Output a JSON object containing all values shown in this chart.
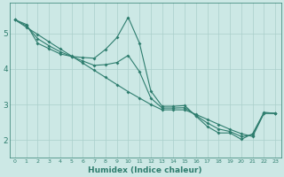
{
  "xlabel": "Humidex (Indice chaleur)",
  "background_color": "#cce8e5",
  "line_color": "#2e7d6e",
  "grid_color": "#aacfcb",
  "xlim": [
    -0.5,
    23.5
  ],
  "ylim": [
    1.5,
    5.85
  ],
  "yticks": [
    2,
    3,
    4,
    5
  ],
  "xticks": [
    0,
    1,
    2,
    3,
    4,
    5,
    6,
    7,
    8,
    9,
    10,
    11,
    12,
    13,
    14,
    15,
    16,
    17,
    18,
    19,
    20,
    21,
    22,
    23
  ],
  "line1_x": [
    0,
    1,
    2,
    3,
    4,
    5,
    6,
    7,
    8,
    9,
    10,
    11,
    12,
    13,
    14,
    15,
    16,
    17,
    18,
    19,
    20,
    21,
    22,
    23
  ],
  "line1_y": [
    5.38,
    5.25,
    4.72,
    4.57,
    4.42,
    4.35,
    4.32,
    4.3,
    4.55,
    4.88,
    5.45,
    4.72,
    3.38,
    2.95,
    2.95,
    2.97,
    2.67,
    2.38,
    2.2,
    2.2,
    2.02,
    2.18,
    2.78,
    2.75
  ],
  "line2_x": [
    0,
    1,
    2,
    3,
    4,
    5,
    6,
    7,
    8,
    9,
    10,
    11,
    12,
    13,
    14,
    15,
    16,
    17,
    18,
    19,
    20,
    21,
    22,
    23
  ],
  "line2_y": [
    5.38,
    5.17,
    4.97,
    4.76,
    4.56,
    4.36,
    4.16,
    3.96,
    3.76,
    3.56,
    3.36,
    3.18,
    3.0,
    2.85,
    2.85,
    2.85,
    2.72,
    2.58,
    2.44,
    2.3,
    2.18,
    2.1,
    2.75,
    2.75
  ],
  "line3_x": [
    0,
    1,
    2,
    3,
    4,
    5,
    6,
    7,
    8,
    9,
    10,
    11,
    12,
    13,
    14,
    15,
    16,
    17,
    18,
    19,
    20,
    21,
    22,
    23
  ],
  "line3_y": [
    5.38,
    5.21,
    4.85,
    4.65,
    4.48,
    4.35,
    4.22,
    4.1,
    4.12,
    4.18,
    4.38,
    3.92,
    3.18,
    2.9,
    2.9,
    2.91,
    2.69,
    2.48,
    2.31,
    2.24,
    2.1,
    2.14,
    2.76,
    2.75
  ]
}
